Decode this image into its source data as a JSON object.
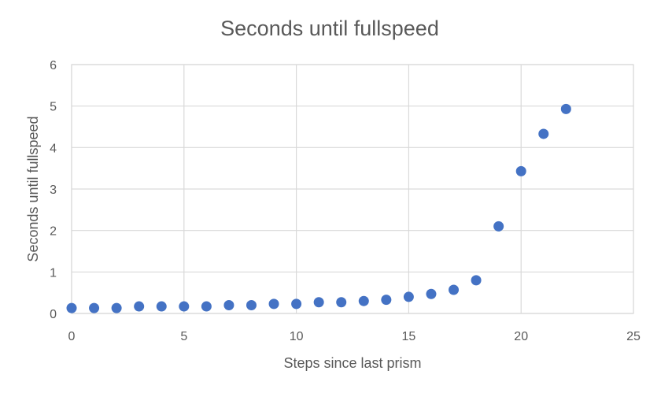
{
  "chart_data": {
    "type": "scatter",
    "title": "Seconds until fullspeed",
    "xlabel": "Steps since last prism",
    "ylabel": "Seconds until fullspeed",
    "xlim": [
      0,
      25
    ],
    "ylim": [
      0,
      6
    ],
    "x_ticks": [
      0,
      5,
      10,
      15,
      20,
      25
    ],
    "y_ticks": [
      0,
      1,
      2,
      3,
      4,
      5,
      6
    ],
    "grid": true,
    "legend": "none",
    "series": [
      {
        "color": "#4472c4",
        "x": [
          0,
          1,
          2,
          3,
          4,
          5,
          6,
          7,
          8,
          9,
          10,
          11,
          12,
          13,
          14,
          15,
          16,
          17,
          18,
          19,
          20,
          21,
          22
        ],
        "y": [
          0.13,
          0.13,
          0.13,
          0.17,
          0.17,
          0.17,
          0.17,
          0.2,
          0.2,
          0.23,
          0.23,
          0.27,
          0.27,
          0.3,
          0.33,
          0.4,
          0.47,
          0.57,
          0.8,
          2.1,
          3.43,
          4.33,
          4.93
        ]
      }
    ]
  }
}
